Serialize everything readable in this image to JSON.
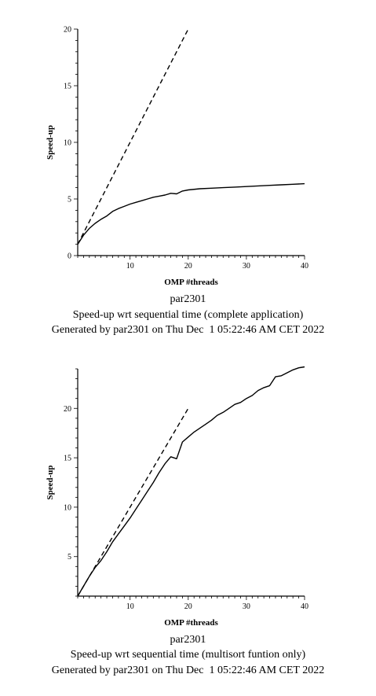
{
  "chart_data": [
    {
      "type": "line",
      "title": "par2301",
      "subtitle": "Speed-up wrt sequential time (complete application)",
      "caption": "Generated by par2301 on Thu Dec  1 05:22:46 AM CET 2022",
      "xlabel": "OMP #threads",
      "ylabel": "Speed-up",
      "xlim": [
        1,
        40
      ],
      "ylim": [
        0,
        20
      ],
      "xticks": [
        10,
        20,
        30,
        40
      ],
      "yticks": [
        0,
        5,
        10,
        15,
        20
      ],
      "grid": false,
      "series": [
        {
          "style": "dashed",
          "x": [
            1,
            20
          ],
          "y": [
            1,
            20
          ]
        },
        {
          "style": "solid",
          "x": [
            1,
            2,
            3,
            4,
            5,
            6,
            7,
            8,
            9,
            10,
            11,
            12,
            13,
            14,
            15,
            16,
            17,
            18,
            19,
            20,
            22,
            24,
            26,
            28,
            30,
            32,
            34,
            36,
            38,
            40
          ],
          "y": [
            1.0,
            1.8,
            2.4,
            2.85,
            3.2,
            3.5,
            3.9,
            4.15,
            4.35,
            4.55,
            4.7,
            4.85,
            5.0,
            5.15,
            5.25,
            5.35,
            5.5,
            5.45,
            5.7,
            5.8,
            5.9,
            5.95,
            6.0,
            6.05,
            6.1,
            6.15,
            6.2,
            6.25,
            6.3,
            6.35
          ]
        }
      ]
    },
    {
      "type": "line",
      "title": "par2301",
      "subtitle": "Speed-up wrt sequential time (multisort funtion only)",
      "caption": "Generated by par2301 on Thu Dec  1 05:22:46 AM CET 2022",
      "xlabel": "OMP #threads",
      "ylabel": "Speed-up",
      "xlim": [
        1,
        40
      ],
      "ylim": [
        1,
        24
      ],
      "xticks": [
        10,
        20,
        30,
        40
      ],
      "yticks": [
        5,
        10,
        15,
        20
      ],
      "grid": false,
      "series": [
        {
          "style": "dashed",
          "x": [
            1,
            20
          ],
          "y": [
            1,
            20
          ]
        },
        {
          "style": "solid",
          "x": [
            1,
            2,
            3,
            4,
            5,
            6,
            7,
            8,
            9,
            10,
            11,
            12,
            13,
            14,
            15,
            16,
            17,
            18,
            19,
            20,
            21,
            22,
            23,
            24,
            25,
            26,
            27,
            28,
            29,
            30,
            31,
            32,
            33,
            34,
            35,
            36,
            37,
            38,
            39,
            40
          ],
          "y": [
            1.0,
            2.0,
            3.0,
            3.9,
            4.6,
            5.5,
            6.5,
            7.3,
            8.1,
            8.9,
            9.8,
            10.7,
            11.6,
            12.5,
            13.5,
            14.4,
            15.1,
            14.9,
            16.6,
            17.1,
            17.6,
            18.0,
            18.4,
            18.8,
            19.3,
            19.6,
            20.0,
            20.4,
            20.6,
            21.0,
            21.3,
            21.8,
            22.1,
            22.3,
            23.2,
            23.3,
            23.6,
            23.9,
            24.1,
            24.2
          ]
        }
      ]
    }
  ]
}
